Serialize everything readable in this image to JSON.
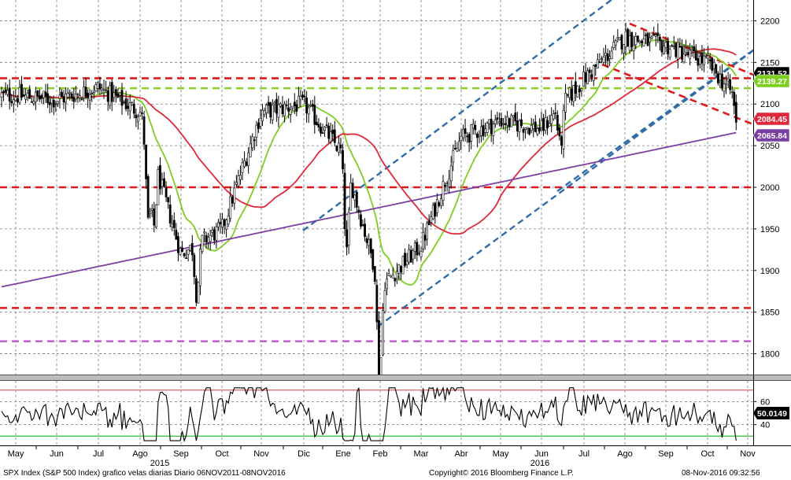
{
  "footer": {
    "left": "SPX Index (S&P 500 Index) grafico velas diarias  Diario 06NOV2011-08NOV2016",
    "center": "Copyright© 2016 Bloomberg Finance L.P.",
    "right": "08-Nov-2016 09:32:56"
  },
  "colors": {
    "background": "#ffffff",
    "candles": "#000000",
    "ma_fast": "#7ccf1f",
    "ma_mid": "#e0283a",
    "ma_slow": "#7b3fa3",
    "channel": "#2f6da8",
    "resistance": "#e01a1a",
    "support_green": "#8fcd2a",
    "support_violet": "#c266d1",
    "rsi_line": "#000000",
    "rsi_upper": "#e06060",
    "rsi_lower": "#2fbf2f"
  },
  "chart_data": [
    {
      "type": "candlestick",
      "panel": "price",
      "title": "",
      "ylim": [
        1775,
        2225
      ],
      "y_ticks": [
        1800,
        1850,
        1900,
        1950,
        2000,
        2050,
        2100,
        2150,
        2200
      ],
      "y_tick_labels": [
        "1800",
        "1850",
        "1900",
        "1950",
        "2000",
        "2050",
        "2100",
        "2150",
        "2200"
      ],
      "x_month_labels": [
        "May",
        "Jun",
        "Jul",
        "Ago",
        "Sep",
        "Oct",
        "Nov",
        "Dic",
        "Ene",
        "Feb",
        "Mar",
        "Abr",
        "May",
        "Jun",
        "Jul",
        "Ago",
        "Sep",
        "Oct",
        "Nov"
      ],
      "x_year_labels": [
        "2015",
        "2016"
      ],
      "grid": true,
      "price_path_anchors": {
        "months": [
          "May-2015",
          "Jun-2015",
          "Jul-2015",
          "Ago-2015",
          "Sep-2015",
          "Oct-2015",
          "Nov-2015",
          "Dic-2015",
          "Ene-2016",
          "Feb-2016",
          "Mar-2016",
          "Abr-2016",
          "May-2016",
          "Jun-2016",
          "Jul-2016",
          "Ago-2016",
          "Sep-2016",
          "Oct-2016",
          "Nov-2016"
        ],
        "close_estimates": [
          2110,
          2105,
          2120,
          2090,
          1920,
          1950,
          2090,
          2100,
          2040,
          1880,
          1930,
          2060,
          2080,
          2070,
          2130,
          2180,
          2170,
          2150,
          2090
        ]
      },
      "series": [
        {
          "name": "SPX Index",
          "last_value": "2131.52",
          "label_color": "#000000"
        },
        {
          "name": "",
          "last_value": "2139.27",
          "label_color": "#7ccf1f"
        },
        {
          "name": "",
          "last_value": "2084.45",
          "label_color": "#e0283a"
        },
        {
          "name": "",
          "last_value": "2065.84",
          "label_color": "#7b3fa3"
        }
      ],
      "horizontal_levels": [
        {
          "value": 2131,
          "style": "dashed",
          "color": "#e01a1a"
        },
        {
          "value": 2119,
          "style": "dashed",
          "color": "#8fcd2a"
        },
        {
          "value": 2000,
          "style": "dashed",
          "color": "#e01a1a"
        },
        {
          "value": 1855,
          "style": "dashed",
          "color": "#e01a1a"
        },
        {
          "value": 1815,
          "style": "dashed",
          "color": "#c266d1"
        }
      ]
    },
    {
      "type": "line",
      "panel": "rsi",
      "title": "",
      "ylim": [
        22,
        78
      ],
      "y_ticks": [
        40,
        60
      ],
      "y_tick_labels": [
        "40",
        "60"
      ],
      "levels": [
        70,
        30
      ],
      "last_value": "50.0149"
    }
  ]
}
